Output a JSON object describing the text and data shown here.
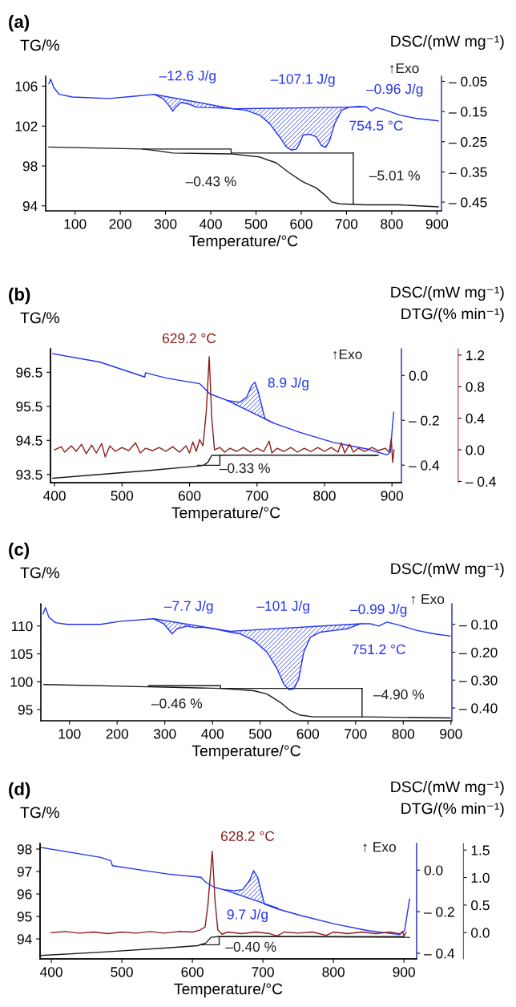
{
  "chart_data": [
    {
      "type": "line",
      "title": "(a)",
      "xlabel": "Temperature/°C",
      "ylabel": "TG/%",
      "y2label": "DSC/(mW mg⁻¹)",
      "xlim": [
        35,
        910
      ],
      "xticks": [
        100,
        200,
        300,
        400,
        500,
        600,
        700,
        800,
        900
      ],
      "ylim": [
        93.5,
        107
      ],
      "yticks": [
        94,
        98,
        102,
        106
      ],
      "y2lim": [
        -0.479,
        -0.033
      ],
      "y2ticks": [
        {
          "value": -0.05,
          "label": "– 0.05"
        },
        {
          "value": -0.15,
          "label": "– 0.15"
        },
        {
          "value": -0.25,
          "label": "– 0.25"
        },
        {
          "value": -0.35,
          "label": "– 0.35"
        },
        {
          "value": -0.45,
          "label": "– 0.45"
        }
      ],
      "series": [
        {
          "color": "#1a1a1a",
          "x": [
            42,
            249,
            286,
            316,
            449,
            508,
            545,
            574,
            604,
            633,
            652,
            667,
            685,
            744,
            818,
            903
          ],
          "values": [
            99.9,
            99.7,
            99.5,
            99.3,
            99.2,
            98.9,
            98.3,
            97.3,
            96.4,
            95.8,
            95.1,
            94.4,
            94.2,
            94.1,
            94.1,
            93.9
          ]
        },
        {
          "color": "#1a1a1a",
          "x": [
            249,
            445,
            445,
            715
          ],
          "values": [
            99.7,
            99.7,
            99.3,
            99.3
          ]
        },
        {
          "color": "#1a1a1a",
          "x": [
            715,
            715
          ],
          "values": [
            99.3,
            94.2
          ]
        },
        {
          "axis": "y2",
          "color": "#2233ee",
          "x": [
            42,
            46,
            53,
            65,
            94,
            175,
            227,
            275,
            294,
            309,
            316,
            323,
            334,
            353,
            367,
            390,
            419,
            449,
            478,
            508,
            530,
            552,
            567,
            578,
            589,
            596,
            604,
            618,
            633,
            644,
            654,
            663,
            674,
            689,
            707,
            729,
            744,
            755,
            766,
            788,
            818,
            855,
            892,
            903
          ],
          "values": [
            -0.058,
            -0.043,
            -0.071,
            -0.093,
            -0.102,
            -0.107,
            -0.1,
            -0.093,
            -0.107,
            -0.133,
            -0.149,
            -0.135,
            -0.12,
            -0.126,
            -0.135,
            -0.137,
            -0.138,
            -0.141,
            -0.146,
            -0.162,
            -0.19,
            -0.234,
            -0.267,
            -0.278,
            -0.275,
            -0.256,
            -0.228,
            -0.225,
            -0.234,
            -0.262,
            -0.269,
            -0.245,
            -0.19,
            -0.146,
            -0.135,
            -0.133,
            -0.135,
            -0.148,
            -0.137,
            -0.146,
            -0.162,
            -0.173,
            -0.179,
            -0.181
          ],
          "lower": [
            null,
            null,
            null,
            null,
            null,
            null,
            null,
            -0.093,
            -0.098,
            -0.102,
            -0.104,
            -0.106,
            -0.109,
            -0.115,
            -0.118,
            -0.125,
            -0.133,
            -0.141,
            -0.14,
            -0.14,
            -0.139,
            -0.139,
            -0.139,
            -0.138,
            -0.138,
            -0.138,
            -0.138,
            -0.138,
            -0.137,
            -0.137,
            -0.137,
            -0.137,
            -0.136,
            -0.136,
            -0.136,
            -0.135,
            -0.135,
            null,
            null,
            null,
            null,
            null,
            null,
            null
          ],
          "upper": [
            null,
            null,
            null,
            null,
            null,
            null,
            null,
            -0.093,
            -0.107,
            -0.133,
            -0.149,
            -0.135,
            -0.12,
            -0.126,
            -0.135,
            -0.137,
            -0.138,
            -0.141,
            -0.146,
            -0.162,
            -0.19,
            -0.234,
            -0.267,
            -0.278,
            -0.275,
            -0.256,
            -0.228,
            -0.225,
            -0.234,
            -0.262,
            -0.269,
            -0.245,
            -0.19,
            -0.146,
            -0.136,
            -0.135,
            -0.135,
            null,
            null,
            null,
            null,
            null,
            null,
            null
          ]
        },
        {
          "axis": "y2",
          "color": "#2233ee",
          "x": [
            275,
            449,
            744
          ],
          "values": [
            -0.093,
            -0.141,
            -0.135
          ]
        }
      ],
      "annotations": [
        "–12.6 J/g",
        "–107.1 J/g",
        "–0.96 J/g",
        "754.5 °C",
        "–0.43 %",
        "–5.01 %",
        "↑Exo"
      ]
    },
    {
      "type": "line",
      "title": "(b)",
      "xlabel": "Temperature/°C",
      "ylabel": "TG/%",
      "y2label": "DSC/(mW mg⁻¹)",
      "y3label": "DTG/(% min⁻¹)",
      "xlim": [
        394,
        914
      ],
      "xticks": [
        400,
        500,
        600,
        700,
        800,
        900
      ],
      "ylim": [
        93.26,
        97.19
      ],
      "yticks": [
        93.5,
        94.5,
        95.5,
        96.5
      ],
      "y2lim": [
        -0.478,
        0.119
      ],
      "y2ticks": [
        {
          "value": 0.0,
          "label": "0.0"
        },
        {
          "value": -0.2,
          "label": "– 0.2"
        },
        {
          "value": -0.4,
          "label": "– 0.4"
        }
      ],
      "y3lim": [
        -0.416,
        1.28
      ],
      "y3ticks": [
        1.2,
        0.8,
        0.4,
        {
          "value": 0,
          "label": "0.0"
        },
        {
          "value": -0.4,
          "label": "– 0.4"
        }
      ],
      "series": [
        {
          "color": "#1a1a1a",
          "x": [
            397.5,
            466.8,
            541,
            615.3,
            621,
            627.7,
            632.7,
            664.9,
            763.9,
            877.7
          ],
          "values": [
            93.39,
            93.5,
            93.62,
            93.75,
            93.77,
            93.87,
            94.06,
            94.07,
            94.07,
            94.06
          ]
        },
        {
          "color": "#1a1a1a",
          "x": [
            612,
            645,
            645,
            880
          ],
          "values": [
            93.77,
            93.77,
            94.07,
            94.07
          ]
        },
        {
          "axis": "y3",
          "color": "#8b1c1c",
          "x": [
            400,
            410,
            415,
            425,
            432,
            440,
            447,
            455,
            462,
            470,
            475,
            482,
            490,
            500,
            510,
            520,
            527,
            535,
            545,
            555,
            565,
            575,
            585,
            595,
            600,
            605,
            610,
            615,
            620,
            625,
            629.2,
            633,
            637,
            645,
            652,
            660,
            670,
            680,
            690,
            700,
            710,
            718,
            722,
            730,
            740,
            750,
            760,
            770,
            780,
            790,
            800,
            810,
            820,
            825,
            830,
            837,
            843,
            850,
            860,
            870,
            880,
            890,
            896,
            899,
            901,
            903
          ],
          "values": [
            0.0,
            0.04,
            -0.03,
            0.05,
            -0.02,
            0.07,
            -0.05,
            0.06,
            -0.04,
            0.08,
            -0.09,
            0.05,
            -0.02,
            0.03,
            -0.01,
            0.09,
            -0.04,
            0.02,
            -0.01,
            0.03,
            -0.02,
            0.04,
            -0.03,
            0.05,
            -0.04,
            0.1,
            -0.02,
            0.13,
            0.05,
            0.5,
            1.18,
            0.4,
            0.0,
            0.03,
            -0.03,
            0.02,
            -0.02,
            0.03,
            -0.03,
            0.02,
            -0.02,
            0.11,
            -0.04,
            0.02,
            -0.02,
            0.03,
            -0.03,
            0.02,
            -0.02,
            0.03,
            -0.02,
            0.03,
            -0.03,
            0.09,
            -0.04,
            0.07,
            -0.03,
            0.02,
            -0.02,
            0.03,
            -0.01,
            0.02,
            -0.03,
            0.14,
            -0.16,
            0.0
          ]
        },
        {
          "axis": "y2",
          "color": "#2233ee",
          "x": [
            397.5,
            466.8,
            533.7,
            534.7,
            565.8,
            615.3,
            620.3,
            630.2,
            656.4,
            674.8,
            684.7,
            692.1,
            697,
            702,
            711.9,
            724.3,
            763.9,
            813.4,
            862.9,
            892.6,
            897.5,
            902.5
          ],
          "values": [
            0.097,
            0.06,
            -0.007,
            0.012,
            -0.012,
            -0.037,
            -0.052,
            -0.082,
            -0.112,
            -0.119,
            -0.097,
            -0.045,
            -0.03,
            -0.075,
            -0.194,
            -0.212,
            -0.254,
            -0.299,
            -0.328,
            -0.354,
            -0.343,
            -0.164
          ],
          "lower": [
            null,
            null,
            null,
            null,
            null,
            null,
            null,
            null,
            -0.112,
            -0.139,
            -0.154,
            -0.164,
            -0.171,
            -0.179,
            -0.194,
            null,
            null,
            null,
            null,
            null,
            null,
            null
          ],
          "upper": [
            null,
            null,
            null,
            null,
            null,
            null,
            null,
            null,
            -0.112,
            -0.119,
            -0.097,
            -0.045,
            -0.03,
            -0.075,
            -0.194,
            null,
            null,
            null,
            null,
            null,
            null,
            null
          ]
        },
        {
          "axis": "y2",
          "color": "#2233ee",
          "x": [
            656.4,
            724.3
          ],
          "values": [
            -0.112,
            -0.212
          ]
        }
      ],
      "annotations": [
        "629.2 °C",
        "8.9 J/g",
        "–0.33 %",
        "↑Exo"
      ]
    },
    {
      "type": "line",
      "title": "(c)",
      "xlabel": "Temperature/°C",
      "ylabel": "TG/%",
      "y2label": "DSC/(mW mg⁻¹)",
      "xlim": [
        40,
        902
      ],
      "xticks": [
        100,
        200,
        300,
        400,
        500,
        600,
        700,
        800,
        900
      ],
      "ylim": [
        93,
        114
      ],
      "yticks": [
        95,
        100,
        105,
        110
      ],
      "y2lim": [
        -0.446,
        -0.026
      ],
      "y2ticks": [
        {
          "value": -0.1,
          "label": "– 0.10"
        },
        {
          "value": -0.2,
          "label": "– 0.20"
        },
        {
          "value": -0.3,
          "label": "– 0.30"
        },
        {
          "value": -0.4,
          "label": "– 0.40"
        }
      ],
      "series": [
        {
          "color": "#1a1a1a",
          "x": [
            46.2,
            262.8,
            318.7,
            416.6,
            486.4,
            514.4,
            542.3,
            563.3,
            584.3,
            612.2,
            724,
            898.7
          ],
          "values": [
            99.5,
            99.1,
            99,
            98.8,
            98.4,
            97.8,
            96.3,
            94.8,
            94,
            93.7,
            93.7,
            93.5
          ]
        },
        {
          "color": "#1a1a1a",
          "x": [
            266,
            416.6,
            416.6,
            713.6
          ],
          "values": [
            99.3,
            99.3,
            98.8,
            98.8
          ]
        },
        {
          "color": "#1a1a1a",
          "x": [
            713.6,
            713.6
          ],
          "values": [
            98.8,
            93.7
          ]
        },
        {
          "axis": "y2",
          "color": "#2233ee",
          "x": [
            44.8,
            49.7,
            56.7,
            70.6,
            95.1,
            165,
            207,
            276.8,
            297.8,
            315.2,
            325.7,
            346.7,
            364.2,
            381.6,
            409.6,
            437.5,
            458.5,
            486.4,
            514.4,
            535.4,
            549.3,
            559.8,
            570.3,
            580.8,
            591.3,
            605.2,
            626.2,
            654.2,
            682.1,
            710.1,
            731,
            748.5,
            766,
            793.9,
            828.9,
            863.8,
            898.7
          ],
          "values": [
            -0.062,
            -0.04,
            -0.074,
            -0.094,
            -0.1,
            -0.1,
            -0.089,
            -0.08,
            -0.098,
            -0.134,
            -0.116,
            -0.106,
            -0.112,
            -0.11,
            -0.118,
            -0.128,
            -0.134,
            -0.158,
            -0.2,
            -0.26,
            -0.314,
            -0.335,
            -0.332,
            -0.296,
            -0.2,
            -0.146,
            -0.128,
            -0.122,
            -0.116,
            -0.098,
            -0.098,
            -0.106,
            -0.092,
            -0.104,
            -0.122,
            -0.134,
            -0.142
          ],
          "lower": [
            null,
            null,
            null,
            null,
            null,
            null,
            null,
            -0.08,
            -0.086,
            -0.091,
            -0.094,
            -0.1,
            -0.105,
            -0.109,
            -0.117,
            -0.125,
            -0.123,
            -0.121,
            -0.118,
            -0.116,
            -0.114,
            -0.113,
            -0.112,
            -0.111,
            -0.11,
            -0.109,
            -0.107,
            -0.104,
            -0.101,
            -0.098,
            null,
            null,
            null,
            null,
            null,
            null,
            null
          ],
          "upper": [
            null,
            null,
            null,
            null,
            null,
            null,
            null,
            -0.08,
            -0.098,
            -0.134,
            -0.116,
            -0.106,
            -0.112,
            -0.11,
            -0.118,
            -0.128,
            -0.134,
            -0.158,
            -0.2,
            -0.26,
            -0.314,
            -0.335,
            -0.332,
            -0.296,
            -0.2,
            -0.146,
            -0.128,
            -0.122,
            -0.116,
            -0.098,
            null,
            null,
            null,
            null,
            null,
            null,
            null
          ]
        },
        {
          "axis": "y2",
          "color": "#2233ee",
          "x": [
            276.8,
            437.5,
            710.1
          ],
          "values": [
            -0.08,
            -0.125,
            -0.098
          ]
        }
      ],
      "annotations": [
        "–7.7 J/g",
        "–101 J/g",
        "–0.99 J/g",
        "751.2 °C",
        "–0.46 %",
        "–4.90 %",
        "↑ Exo"
      ]
    },
    {
      "type": "line",
      "title": "(d)",
      "xlabel": "Temperature/°C",
      "ylabel": "TG/%",
      "y2label": "DSC/(mW mg⁻¹)",
      "y3label": "DTG/(% min⁻¹)",
      "xlim": [
        384,
        918
      ],
      "xticks": [
        400,
        500,
        600,
        700,
        800,
        900
      ],
      "ylim": [
        93.11,
        98.25
      ],
      "yticks": [
        94,
        95,
        96,
        97,
        98
      ],
      "y2lim": [
        -0.427,
        0.128
      ],
      "y2ticks": [
        {
          "value": 0.0,
          "label": "0.0"
        },
        {
          "value": -0.2,
          "label": "– 0.2"
        },
        {
          "value": -0.4,
          "label": "– 0.4"
        }
      ],
      "y3lim": [
        -0.478,
        1.62
      ],
      "y3ticks": [
        1.5,
        {
          "value": 1,
          "label": "1.0"
        },
        0.5,
        {
          "value": 0,
          "label": "0.0"
        }
      ],
      "series": [
        {
          "color": "#1a1a1a",
          "x": [
            384.8,
            470,
            564.8,
            607.4,
            619.2,
            626.3,
            635.8,
            754.2,
            908
          ],
          "values": [
            93.26,
            93.41,
            93.6,
            93.7,
            93.82,
            94.07,
            94.1,
            94.1,
            94.07
          ]
        },
        {
          "color": "#1a1a1a",
          "x": [
            612,
            638,
            638,
            900
          ],
          "values": [
            93.74,
            93.74,
            94.1,
            94.1
          ]
        },
        {
          "axis": "y3",
          "color": "#8b1c1c",
          "x": [
            400,
            420,
            440,
            460,
            480,
            500,
            520,
            540,
            560,
            580,
            600,
            610,
            618,
            622,
            628.2,
            632,
            636,
            642,
            650,
            670,
            690,
            710,
            720,
            730,
            750,
            770,
            790,
            800,
            820,
            840,
            860,
            880,
            895,
            898,
            900,
            903
          ],
          "values": [
            0.0,
            0.02,
            -0.01,
            0.01,
            -0.02,
            0.01,
            -0.01,
            0.02,
            -0.01,
            0.02,
            0.01,
            0.04,
            0.1,
            0.5,
            1.48,
            0.6,
            0.05,
            -0.03,
            0.01,
            -0.02,
            0.01,
            -0.02,
            -0.06,
            0.01,
            -0.01,
            0.01,
            -0.05,
            0.01,
            -0.02,
            0.01,
            -0.02,
            0.01,
            -0.02,
            0.02,
            -0.06,
            0.0
          ]
        },
        {
          "axis": "y2",
          "color": "#2233ee",
          "x": [
            384.8,
            470,
            484.3,
            486.6,
            517.4,
            564.8,
            612.1,
            619.2,
            631.1,
            644.3,
            659.5,
            671.3,
            680.8,
            686.9,
            692.6,
            702.1,
            721,
            754.2,
            801.5,
            848.9,
            893.8,
            900.9,
            908
          ],
          "values": [
            0.109,
            0.061,
            0.045,
            0.021,
            0.005,
            -0.019,
            -0.035,
            -0.059,
            -0.083,
            -0.094,
            -0.099,
            -0.094,
            -0.051,
            -0.003,
            -0.035,
            -0.163,
            -0.187,
            -0.219,
            -0.259,
            -0.291,
            -0.31,
            -0.291,
            -0.139
          ],
          "lower": [
            null,
            null,
            null,
            null,
            null,
            null,
            null,
            null,
            null,
            -0.094,
            -0.111,
            -0.125,
            -0.136,
            -0.143,
            -0.15,
            -0.161,
            -0.183,
            null,
            null,
            null,
            null,
            null,
            null
          ],
          "upper": [
            null,
            null,
            null,
            null,
            null,
            null,
            null,
            null,
            null,
            -0.094,
            -0.099,
            -0.094,
            -0.051,
            -0.003,
            -0.035,
            -0.163,
            -0.187,
            null,
            null,
            null,
            null,
            null,
            null
          ]
        },
        {
          "axis": "y2",
          "color": "#2233ee",
          "x": [
            644.3,
            721
          ],
          "values": [
            -0.094,
            -0.183
          ]
        }
      ],
      "annotations": [
        "628.2 °C",
        "9.7 J/g",
        "–0.40 %",
        "↑ Exo"
      ]
    }
  ]
}
